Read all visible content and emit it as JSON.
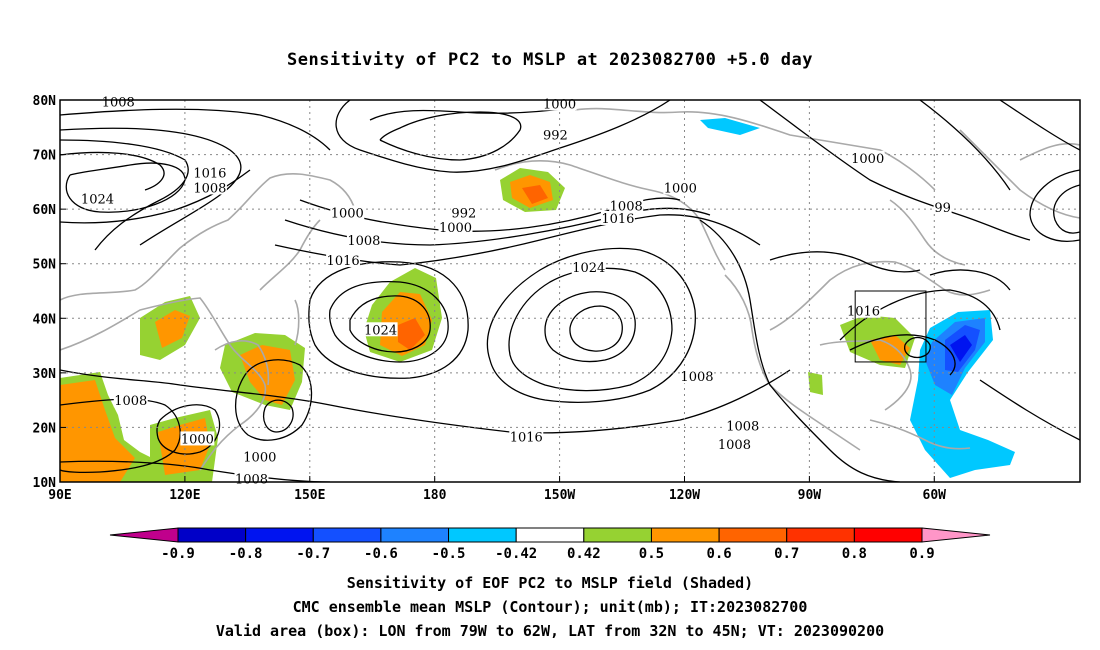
{
  "title": "Sensitivity of PC2 to MSLP at 2023082700 +5.0 day",
  "map": {
    "lon_labels": [
      "90E",
      "120E",
      "150E",
      "180",
      "150W",
      "120W",
      "90W",
      "60W"
    ],
    "lat_labels": [
      "80N",
      "70N",
      "60N",
      "50N",
      "40N",
      "30N",
      "20N",
      "10N"
    ],
    "grid": "dotted",
    "contour_labels": [
      {
        "text": "1008",
        "lon": 104,
        "lat": 79.5
      },
      {
        "text": "1000",
        "lon": 210,
        "lat": 79.2
      },
      {
        "text": "992",
        "lon": 209,
        "lat": 73.5
      },
      {
        "text": "1016",
        "lon": 126,
        "lat": 66.5
      },
      {
        "text": "1008",
        "lon": 126,
        "lat": 63.8
      },
      {
        "text": "1024",
        "lon": 99,
        "lat": 61.8
      },
      {
        "text": "1000",
        "lon": 159,
        "lat": 59.2
      },
      {
        "text": "1008",
        "lon": 163,
        "lat": 54.2
      },
      {
        "text": "1016",
        "lon": 158,
        "lat": 50.5
      },
      {
        "text": "992",
        "lon": 187,
        "lat": 59.2
      },
      {
        "text": "1000",
        "lon": 185,
        "lat": 56.5
      },
      {
        "text": "1008",
        "lon": 226,
        "lat": 60.5
      },
      {
        "text": "1016",
        "lon": 224,
        "lat": 58.2
      },
      {
        "text": "1000",
        "lon": 239,
        "lat": 63.8
      },
      {
        "text": "1000",
        "lon": 284,
        "lat": 69.2
      },
      {
        "text": "99",
        "lon": 302,
        "lat": 60.2
      },
      {
        "text": "1024",
        "lon": 167,
        "lat": 37.8
      },
      {
        "text": "1024",
        "lon": 217,
        "lat": 49.2
      },
      {
        "text": "1016",
        "lon": 283,
        "lat": 41.2
      },
      {
        "text": "1008",
        "lon": 107,
        "lat": 24.8
      },
      {
        "text": "1000",
        "lon": 123,
        "lat": 17.8
      },
      {
        "text": "1000",
        "lon": 138,
        "lat": 14.5
      },
      {
        "text": "1008",
        "lon": 136,
        "lat": 10.5
      },
      {
        "text": "1016",
        "lon": 202,
        "lat": 18.2
      },
      {
        "text": "1008",
        "lon": 243,
        "lat": 29.2
      },
      {
        "text": "1008",
        "lon": 254,
        "lat": 20.2
      },
      {
        "text": "1008",
        "lon": 252,
        "lat": 16.8
      }
    ],
    "valid_box": {
      "lon_min": 281,
      "lon_max": 298,
      "lat_min": 32,
      "lat_max": 45
    }
  },
  "colorbar": {
    "labels": [
      "-0.9",
      "-0.8",
      "-0.7",
      "-0.6",
      "-0.5",
      "-0.42",
      "0.42",
      "0.5",
      "0.6",
      "0.7",
      "0.8",
      "0.9"
    ],
    "colors": [
      "#c0008c",
      "#0000c8",
      "#0014f0",
      "#1450ff",
      "#1e82ff",
      "#00c8ff",
      "#ffffff",
      "#96d232",
      "#ff9600",
      "#ff6400",
      "#ff3200",
      "#ff0000",
      "#ff96c8"
    ]
  },
  "captions": [
    "Sensitivity of EOF PC2 to MSLP field (Shaded)",
    "CMC ensemble mean MSLP (Contour); unit(mb); IT:2023082700",
    "Valid area (box): LON from 79W to 62W, LAT from 32N to 45N; VT: 2023090200"
  ]
}
